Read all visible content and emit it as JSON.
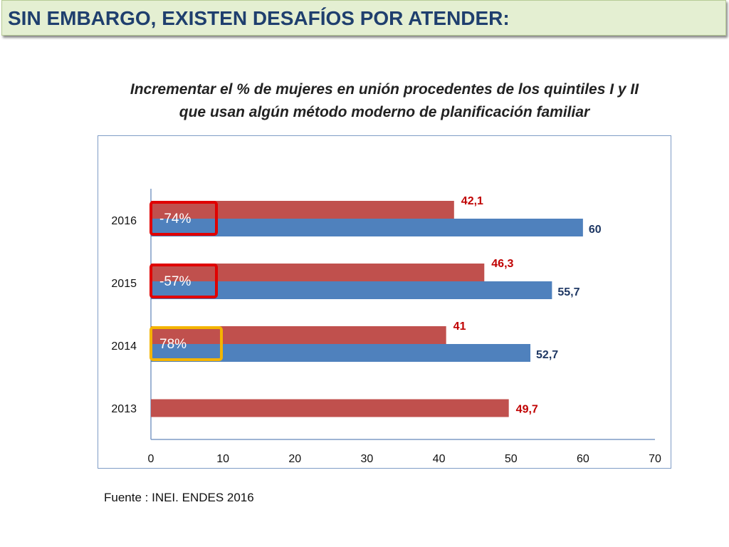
{
  "header": {
    "title": "SIN EMBARGO, EXISTEN DESAFÍOS POR ATENDER:"
  },
  "chart_title": {
    "line1": "Incrementar el % de mujeres en unión procedentes de los quintiles I y II",
    "line2": "que usan algún método moderno de planificación familiar"
  },
  "source": "Fuente : INEI. ENDES 2016",
  "colors": {
    "series_red": "#c0504d",
    "series_blue": "#4f81bd",
    "label_red": "#c00000",
    "label_blue": "#1f3864",
    "box_red": "#e00000",
    "box_yellow": "#f4b400"
  },
  "chart_data": {
    "type": "bar",
    "orientation": "horizontal",
    "categories": [
      "2013",
      "2014",
      "2015",
      "2016"
    ],
    "series": [
      {
        "key": "red",
        "values": [
          49.7,
          41,
          46.3,
          42.1
        ],
        "labels": [
          "49,7",
          "41",
          "46,3",
          "42,1"
        ]
      },
      {
        "key": "blue",
        "values": [
          null,
          52.7,
          55.7,
          60
        ],
        "labels": [
          null,
          "52,7",
          "55,7",
          "60"
        ]
      }
    ],
    "xlim": [
      0,
      70
    ],
    "xticks": [
      "0",
      "10",
      "20",
      "30",
      "40",
      "50",
      "60",
      "70"
    ],
    "grid": false,
    "annotations": [
      {
        "category": "2016",
        "text": "-74%",
        "box_color": "red"
      },
      {
        "category": "2015",
        "text": "-57%",
        "box_color": "red"
      },
      {
        "category": "2014",
        "text": "78%",
        "box_color": "yellow"
      }
    ]
  }
}
